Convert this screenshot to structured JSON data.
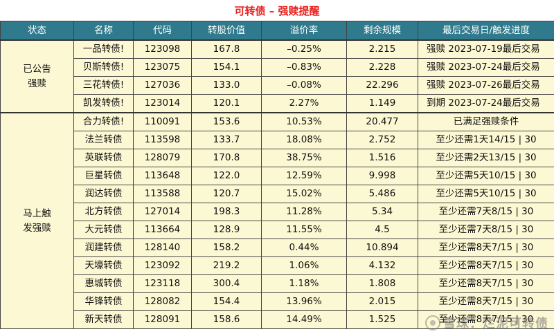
{
  "title": "可转债 – 强赎提醒",
  "columns": [
    "状态",
    "名称",
    "代码",
    "转股价值",
    "溢价率",
    "剩余规模",
    "最后交易日/触发进度"
  ],
  "groups": [
    {
      "status": "已公告\n强赎",
      "rows": [
        {
          "name": "一品转债!",
          "code": "123098",
          "conv_value": "167.8",
          "premium": "–0.25%",
          "remaining": "2.215",
          "progress": "强赎  2023-07-19最后交易"
        },
        {
          "name": "贝斯转债!",
          "code": "123075",
          "conv_value": "154.1",
          "premium": "–0.83%",
          "remaining": "2.228",
          "progress": "强赎  2023-07-24最后交易"
        },
        {
          "name": "三花转债!",
          "code": "127036",
          "conv_value": "133.0",
          "premium": "–0.08%",
          "remaining": "22.296",
          "progress": "强赎  2023-07-26最后交易"
        },
        {
          "name": "凯发转债!",
          "code": "123014",
          "conv_value": "120.1",
          "premium": "2.27%",
          "remaining": "1.149",
          "progress": "到期  2023-07-24最后交易"
        }
      ]
    },
    {
      "status": "马上触\n发强赎",
      "rows": [
        {
          "name": "合力转债!",
          "code": "110091",
          "conv_value": "153.6",
          "premium": "10.53%",
          "remaining": "20.477",
          "progress": "已满足强赎条件"
        },
        {
          "name": "法兰转债",
          "code": "113598",
          "conv_value": "133.7",
          "premium": "18.08%",
          "remaining": "2.752",
          "progress": "至少还需1天14/15 | 30"
        },
        {
          "name": "英联转债",
          "code": "128079",
          "conv_value": "170.8",
          "premium": "38.75%",
          "remaining": "1.516",
          "progress": "至少还需2天13/15 | 30"
        },
        {
          "name": "巨星转债",
          "code": "113648",
          "conv_value": "122.0",
          "premium": "12.59%",
          "remaining": "9.998",
          "progress": "至少还需5天10/15 | 30"
        },
        {
          "name": "润达转债",
          "code": "113588",
          "conv_value": "120.7",
          "premium": "15.02%",
          "remaining": "5.486",
          "progress": "至少还需5天10/15 | 30"
        },
        {
          "name": "北方转债",
          "code": "127014",
          "conv_value": "198.3",
          "premium": "11.28%",
          "remaining": "5.34",
          "progress": "至少还需7天8/15 | 30"
        },
        {
          "name": "大元转债",
          "code": "113664",
          "conv_value": "128.9",
          "premium": "11.55%",
          "remaining": "4.5",
          "progress": "至少还需7天8/15 | 30"
        },
        {
          "name": "润建转债",
          "code": "128140",
          "conv_value": "158.2",
          "premium": "0.44%",
          "remaining": "10.894",
          "progress": "至少还需8天7/15 | 30"
        },
        {
          "name": "天壕转债",
          "code": "123092",
          "conv_value": "219.2",
          "premium": "1.06%",
          "remaining": "4.132",
          "progress": "至少还需8天7/15 | 30"
        },
        {
          "name": "惠城转债",
          "code": "123118",
          "conv_value": "300.4",
          "premium": "1.18%",
          "remaining": "1.808",
          "progress": "至少还需8天7/15 | 30"
        },
        {
          "name": "华锋转债",
          "code": "128082",
          "conv_value": "154.4",
          "premium": "13.96%",
          "remaining": "2.015",
          "progress": "至少还需8天7/15 | 30"
        },
        {
          "name": "新天转债",
          "code": "128091",
          "conv_value": "158.6",
          "premium": "14.49%",
          "remaining": "1.525",
          "progress": "至少还需8天7/15 | 30"
        }
      ]
    }
  ],
  "watermark": "雪球：烂泥可转债",
  "colors": {
    "title": "#e8221f",
    "header_bg": "#2f7a8c",
    "body_bg": "#fdf8d4"
  }
}
